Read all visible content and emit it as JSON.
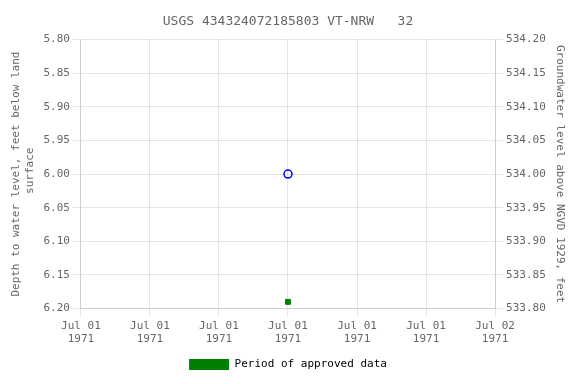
{
  "chart_data": {
    "type": "scatter",
    "title": "USGS 434324072185803 VT-NRW   32",
    "y_label": "Depth to water level, feet below land\n surface",
    "y2_label": "Groundwater level above NGVD 1929, feet",
    "categories": [
      "Jul 01\n1971",
      "Jul 01\n1971",
      "Jul 01\n1971",
      "Jul 01\n1971",
      "Jul 01\n1971",
      "Jul 01\n1971",
      "Jul 02\n1971"
    ],
    "series": [
      {
        "color": "blue",
        "marker": "circle_open",
        "values": [
          null,
          null,
          null,
          6.0,
          null,
          null,
          null
        ]
      },
      {
        "name": "Period of approved data",
        "color": "green",
        "marker": "square",
        "values": [
          null,
          null,
          null,
          6.19,
          null,
          null,
          null
        ]
      }
    ],
    "ylim": [
      6.2,
      5.8
    ],
    "yticks": [
      {
        "value": 5.8,
        "label": "5.80"
      },
      {
        "value": 5.85,
        "label": "5.85"
      },
      {
        "value": 5.9,
        "label": "5.90"
      },
      {
        "value": 5.95,
        "label": "5.95"
      },
      {
        "value": 6.0,
        "label": "6.00"
      },
      {
        "value": 6.05,
        "label": "6.05"
      },
      {
        "value": 6.1,
        "label": "6.10"
      },
      {
        "value": 6.15,
        "label": "6.15"
      },
      {
        "value": 6.2,
        "label": "6.20"
      }
    ],
    "y2lim": [
      533.8,
      534.2
    ],
    "y2ticks": [
      {
        "value": 534.2,
        "label": "534.20"
      },
      {
        "value": 534.15,
        "label": "534.15"
      },
      {
        "value": 534.1,
        "label": "534.10"
      },
      {
        "value": 534.05,
        "label": "534.05"
      },
      {
        "value": 534.0,
        "label": "534.00"
      },
      {
        "value": 533.95,
        "label": "533.95"
      },
      {
        "value": 533.9,
        "label": "533.90"
      },
      {
        "value": 533.85,
        "label": "533.85"
      },
      {
        "value": 533.8,
        "label": "533.80"
      }
    ],
    "grid": true,
    "legend": "bottom"
  }
}
